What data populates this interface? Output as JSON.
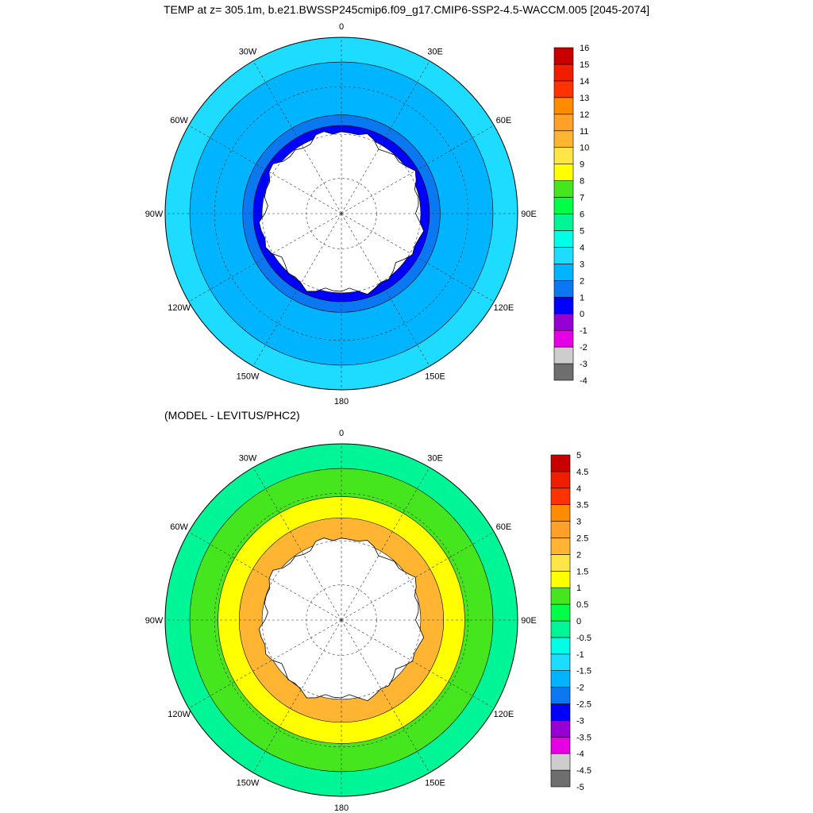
{
  "title": "TEMP at z= 305.1m, b.e21.BWSSP245cmip6.f09_g17.CMIP6-SSP2-4.5-WACCM.005 [2045-2074]",
  "subtitle": "(MODEL - LEVITUS/PHC2)",
  "chart_data": [
    {
      "type": "heatmap",
      "projection": "south polar stereographic",
      "variable": "TEMP at z= 305.1m",
      "longitude_labels": [
        "0",
        "30E",
        "60E",
        "90E",
        "120E",
        "150E",
        "180",
        "150W",
        "120W",
        "90W",
        "60W",
        "30W"
      ],
      "colorbar": {
        "levels": [
          "-4",
          "-3",
          "-2",
          "-1",
          "0",
          "1",
          "2",
          "3",
          "4",
          "5",
          "6",
          "7",
          "8",
          "9",
          "10",
          "11",
          "12",
          "13",
          "14",
          "15",
          "16"
        ],
        "colors": [
          "#6e6e6e",
          "#cdcdcd",
          "#e600e6",
          "#9600d2",
          "#0000ff",
          "#0a78f0",
          "#00b4ff",
          "#1edcff",
          "#00ffe6",
          "#00f596",
          "#00ff46",
          "#46e61e",
          "#ffff00",
          "#ffe646",
          "#ffb432",
          "#ffa028",
          "#ff8c00",
          "#ff3200",
          "#f01e00",
          "#c80000"
        ]
      },
      "field_rings": [
        {
          "from_colat": 0,
          "to_colat": 0.45,
          "value_color": "#ffffff",
          "note": "land"
        },
        {
          "from_colat": 0.45,
          "to_colat": 0.5,
          "value_color": "#0000ff"
        },
        {
          "from_colat": 0.5,
          "to_colat": 0.56,
          "value_color": "#0a78f0"
        },
        {
          "from_colat": 0.56,
          "to_colat": 0.86,
          "value_color": "#00b4ff"
        },
        {
          "from_colat": 0.86,
          "to_colat": 1.0,
          "value_color": "#1edcff"
        }
      ]
    },
    {
      "type": "heatmap",
      "projection": "south polar stereographic",
      "variable": "(MODEL - LEVITUS/PHC2)",
      "longitude_labels": [
        "0",
        "30E",
        "60E",
        "90E",
        "120E",
        "150E",
        "180",
        "150W",
        "120W",
        "90W",
        "60W",
        "30W"
      ],
      "colorbar": {
        "levels": [
          "-5",
          "-4.5",
          "-4",
          "-3.5",
          "-3",
          "-2.5",
          "-2",
          "-1.5",
          "-1",
          "-0.5",
          "0",
          "0.5",
          "1",
          "1.5",
          "2",
          "2.5",
          "3",
          "3.5",
          "4",
          "4.5",
          "5"
        ],
        "colors": [
          "#6e6e6e",
          "#cdcdcd",
          "#e600e6",
          "#9600d2",
          "#0000ff",
          "#0a78f0",
          "#00b4ff",
          "#1edcff",
          "#00ffe6",
          "#00f596",
          "#00ff46",
          "#46e61e",
          "#ffff00",
          "#ffe646",
          "#ffb432",
          "#ffa028",
          "#ff8c00",
          "#ff3200",
          "#f01e00",
          "#c80000"
        ]
      },
      "field_rings": [
        {
          "from_colat": 0,
          "to_colat": 0.45,
          "value_color": "#ffffff",
          "note": "land"
        },
        {
          "from_colat": 0.45,
          "to_colat": 0.58,
          "value_color": "#ffb432"
        },
        {
          "from_colat": 0.58,
          "to_colat": 0.7,
          "value_color": "#ffff00"
        },
        {
          "from_colat": 0.7,
          "to_colat": 0.86,
          "value_color": "#46e61e"
        },
        {
          "from_colat": 0.86,
          "to_colat": 1.0,
          "value_color": "#00f596"
        }
      ]
    }
  ]
}
